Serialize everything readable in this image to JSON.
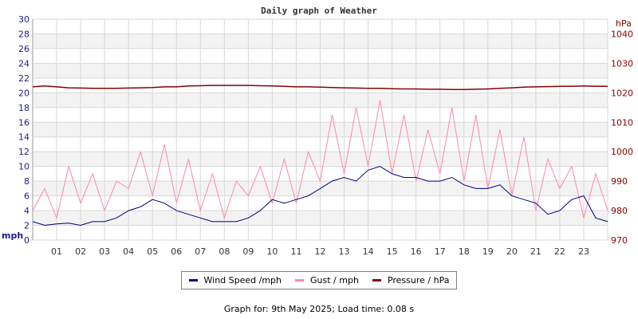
{
  "chart_data": {
    "type": "line",
    "title": "Daily graph of Weather",
    "ylabel": "mph",
    "y2label": "hPa",
    "ylim": [
      0,
      30
    ],
    "y2lim": [
      970,
      1045
    ],
    "yticks": [
      0,
      2,
      4,
      6,
      8,
      10,
      12,
      14,
      16,
      18,
      20,
      22,
      24,
      26,
      28,
      30
    ],
    "y2ticks": [
      970,
      980,
      990,
      1000,
      1010,
      1020,
      1030,
      1040
    ],
    "xticks": [
      "01",
      "02",
      "03",
      "04",
      "05",
      "06",
      "07",
      "08",
      "09",
      "10",
      "11",
      "12",
      "13",
      "14",
      "15",
      "16",
      "17",
      "18",
      "19",
      "20",
      "21",
      "22",
      "23"
    ],
    "x_hours": [
      0,
      0.5,
      1,
      1.5,
      2,
      2.5,
      3,
      3.5,
      4,
      4.5,
      5,
      5.5,
      6,
      6.5,
      7,
      7.5,
      8,
      8.5,
      9,
      9.5,
      10,
      10.5,
      11,
      11.5,
      12,
      12.5,
      13,
      13.5,
      14,
      14.5,
      15,
      15.5,
      16,
      16.5,
      17,
      17.5,
      18,
      18.5,
      19,
      19.5,
      20,
      20.5,
      21,
      21.5,
      22,
      22.5,
      23,
      23.5,
      24
    ],
    "grid": true,
    "legend_position": "bottom",
    "series": [
      {
        "name": "Wind Speed /mph",
        "color": "#000080",
        "axis": "left",
        "values": [
          2.5,
          2,
          2.2,
          2.3,
          2,
          2.5,
          2.5,
          3,
          4,
          4.5,
          5.5,
          5,
          4,
          3.5,
          3,
          2.5,
          2.5,
          2.5,
          3,
          4,
          5.5,
          5,
          5.5,
          6,
          7,
          8,
          8.5,
          8,
          9.5,
          10,
          9,
          8.5,
          8.5,
          8,
          8,
          8.5,
          7.5,
          7,
          7,
          7.5,
          6,
          5.5,
          5,
          3.5,
          4,
          5.5,
          6,
          3,
          2.5
        ]
      },
      {
        "name": "Gust / mph",
        "color": "#ff88aa",
        "axis": "left",
        "values": [
          4,
          7,
          3,
          10,
          5,
          9,
          4,
          8,
          7,
          12,
          6,
          13,
          5,
          11,
          4,
          9,
          3,
          8,
          6,
          10,
          5,
          11,
          5,
          12,
          8,
          17,
          9,
          18,
          10,
          19,
          9,
          17,
          8,
          15,
          9,
          18,
          8,
          17,
          7,
          15,
          6,
          14,
          4,
          11,
          7,
          10,
          3,
          9,
          4
        ]
      },
      {
        "name": "Pressure / hPa",
        "color": "#8b0000",
        "axis": "right",
        "values": [
          1022,
          1022.3,
          1022,
          1021.7,
          1021.6,
          1021.5,
          1021.5,
          1021.5,
          1021.6,
          1021.7,
          1021.8,
          1022,
          1022,
          1022.3,
          1022.4,
          1022.5,
          1022.5,
          1022.5,
          1022.5,
          1022.4,
          1022.3,
          1022.2,
          1022,
          1022,
          1021.9,
          1021.8,
          1021.7,
          1021.6,
          1021.5,
          1021.5,
          1021.4,
          1021.3,
          1021.3,
          1021.2,
          1021.2,
          1021.1,
          1021.1,
          1021.2,
          1021.3,
          1021.5,
          1021.7,
          1021.9,
          1022,
          1022.1,
          1022.2,
          1022.2,
          1022.3,
          1022.2,
          1022.2
        ]
      }
    ]
  },
  "footer": "Graph for: 9th May 2025; Load time: 0.08 s"
}
